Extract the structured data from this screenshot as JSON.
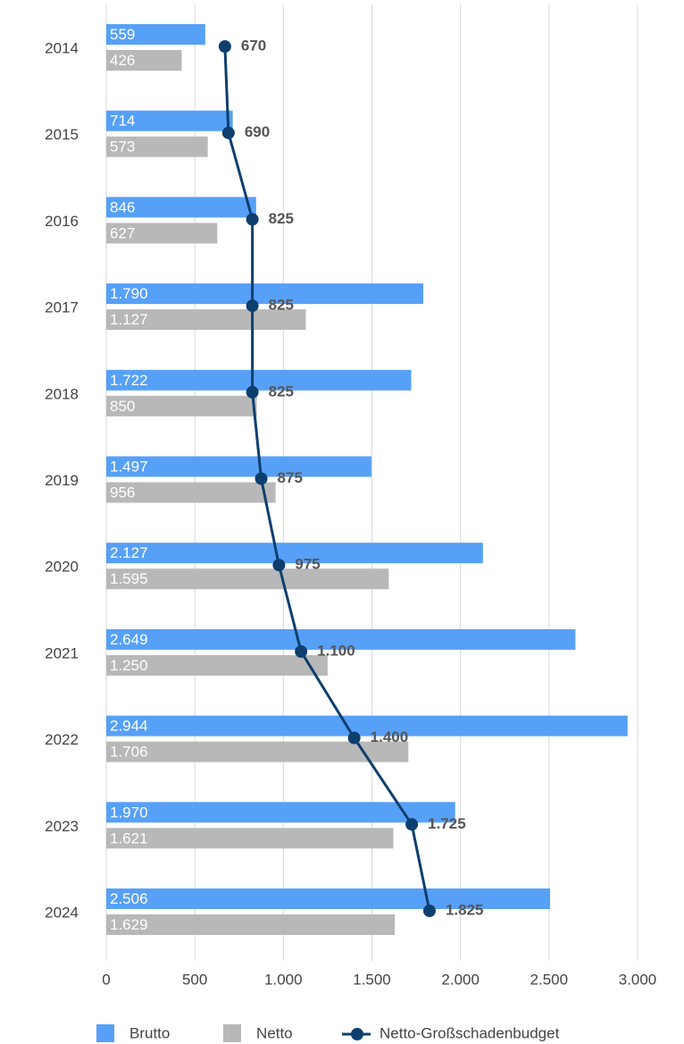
{
  "chart_data": {
    "type": "bar",
    "orientation": "horizontal",
    "categories": [
      "2014",
      "2015",
      "2016",
      "2017",
      "2018",
      "2019",
      "2020",
      "2021",
      "2022",
      "2023",
      "2024"
    ],
    "series": [
      {
        "name": "Brutto",
        "type": "bar",
        "color": "#57a0f7",
        "values": [
          559,
          714,
          846,
          1790,
          1722,
          1497,
          2127,
          2649,
          2944,
          1970,
          2506
        ],
        "value_labels": [
          "559",
          "714",
          "846",
          "1.790",
          "1.722",
          "1.497",
          "2.127",
          "2.649",
          "2.944",
          "1.970",
          "2.506"
        ]
      },
      {
        "name": "Netto",
        "type": "bar",
        "color": "#b8b8b8",
        "values": [
          426,
          573,
          627,
          1127,
          850,
          956,
          1595,
          1250,
          1706,
          1621,
          1629
        ],
        "value_labels": [
          "426",
          "573",
          "627",
          "1.127",
          "850",
          "956",
          "1.595",
          "1.250",
          "1.706",
          "1.621",
          "1.629"
        ]
      },
      {
        "name": "Netto-Großschadenbudget",
        "type": "line",
        "color": "#0d3f6e",
        "values": [
          670,
          690,
          825,
          825,
          825,
          875,
          975,
          1100,
          1400,
          1725,
          1825
        ],
        "value_labels": [
          "670",
          "690",
          "825",
          "825",
          "825",
          "875",
          "975",
          "1.100",
          "1.400",
          "1.725",
          "1.825"
        ]
      }
    ],
    "xlim": [
      0,
      3000
    ],
    "xticks": [
      0,
      500,
      {
        "value": 1000,
        "label": "1.000"
      },
      {
        "value": 1500,
        "label": "1.500"
      },
      {
        "value": 2000,
        "label": "2.000"
      },
      {
        "value": 2500,
        "label": "2.500"
      },
      {
        "value": 3000,
        "label": "3.000"
      }
    ],
    "grid": true,
    "legend": "bottom"
  }
}
